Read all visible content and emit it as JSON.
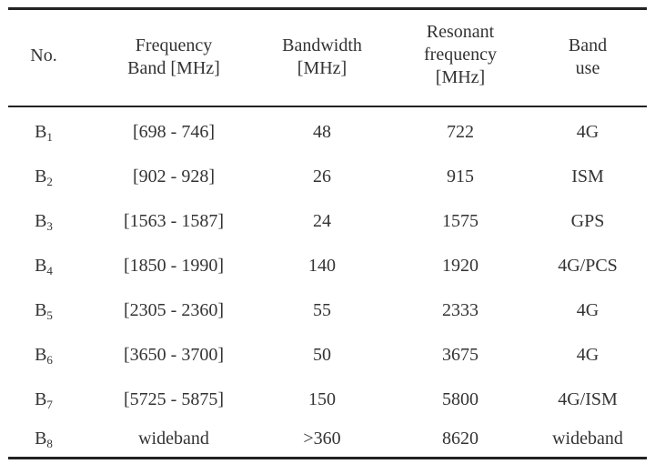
{
  "table": {
    "headers": {
      "no": [
        "No."
      ],
      "frequency_band": [
        "Frequency",
        "Band [MHz]"
      ],
      "bandwidth": [
        "Bandwidth",
        "[MHz]"
      ],
      "resonant_frequency": [
        "Resonant",
        "frequency",
        "[MHz]"
      ],
      "band_use": [
        "Band",
        "use"
      ]
    },
    "rows": [
      {
        "id": "B",
        "sub": "1",
        "band": "[698 - 746]",
        "bandwidth": "48",
        "resonant": "722",
        "use": "4G"
      },
      {
        "id": "B",
        "sub": "2",
        "band": "[902 - 928]",
        "bandwidth": "26",
        "resonant": "915",
        "use": "ISM"
      },
      {
        "id": "B",
        "sub": "3",
        "band": "[1563 - 1587]",
        "bandwidth": "24",
        "resonant": "1575",
        "use": "GPS"
      },
      {
        "id": "B",
        "sub": "4",
        "band": "[1850 - 1990]",
        "bandwidth": "140",
        "resonant": "1920",
        "use": "4G/PCS"
      },
      {
        "id": "B",
        "sub": "5",
        "band": "[2305 - 2360]",
        "bandwidth": "55",
        "resonant": "2333",
        "use": "4G"
      },
      {
        "id": "B",
        "sub": "6",
        "band": "[3650 - 3700]",
        "bandwidth": "50",
        "resonant": "3675",
        "use": "4G"
      },
      {
        "id": "B",
        "sub": "7",
        "band": "[5725 - 5875]",
        "bandwidth": "150",
        "resonant": "5800",
        "use": "4G/ISM"
      },
      {
        "id": "B",
        "sub": "8",
        "band": "wideband",
        "bandwidth": ">360",
        "resonant": "8620",
        "use": "wideband"
      }
    ]
  }
}
